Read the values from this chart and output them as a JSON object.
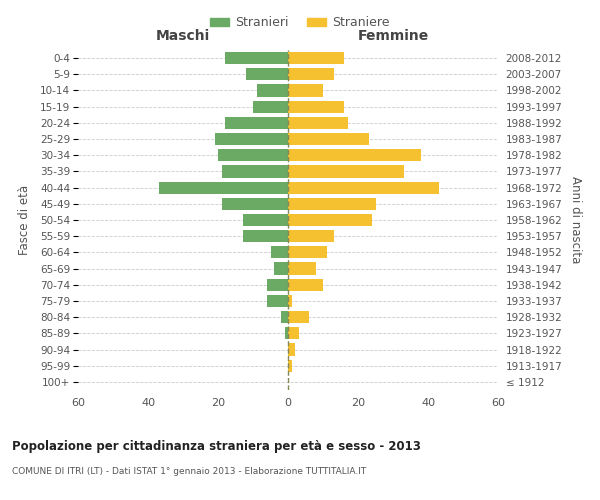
{
  "age_groups": [
    "100+",
    "95-99",
    "90-94",
    "85-89",
    "80-84",
    "75-79",
    "70-74",
    "65-69",
    "60-64",
    "55-59",
    "50-54",
    "45-49",
    "40-44",
    "35-39",
    "30-34",
    "25-29",
    "20-24",
    "15-19",
    "10-14",
    "5-9",
    "0-4"
  ],
  "birth_years": [
    "≤ 1912",
    "1913-1917",
    "1918-1922",
    "1923-1927",
    "1928-1932",
    "1933-1937",
    "1938-1942",
    "1943-1947",
    "1948-1952",
    "1953-1957",
    "1958-1962",
    "1963-1967",
    "1968-1972",
    "1973-1977",
    "1978-1982",
    "1983-1987",
    "1988-1992",
    "1993-1997",
    "1998-2002",
    "2003-2007",
    "2008-2012"
  ],
  "maschi": [
    0,
    0,
    0,
    1,
    2,
    6,
    6,
    4,
    5,
    13,
    13,
    19,
    37,
    19,
    20,
    21,
    18,
    10,
    9,
    12,
    18
  ],
  "femmine": [
    0,
    1,
    2,
    3,
    6,
    1,
    10,
    8,
    11,
    13,
    24,
    25,
    43,
    33,
    38,
    23,
    17,
    16,
    10,
    13,
    16
  ],
  "color_maschi": "#6aaa64",
  "color_femmine": "#f5c131",
  "dashed_line_color": "#888855",
  "background_color": "#ffffff",
  "grid_color": "#cccccc",
  "title": "Popolazione per cittadinanza straniera per età e sesso - 2013",
  "subtitle": "COMUNE DI ITRI (LT) - Dati ISTAT 1° gennaio 2013 - Elaborazione TUTTITALIA.IT",
  "xlabel_left": "Maschi",
  "xlabel_right": "Femmine",
  "ylabel_left": "Fasce di età",
  "ylabel_right": "Anni di nascita",
  "legend_stranieri": "Stranieri",
  "legend_straniere": "Straniere",
  "xlim": 60,
  "bar_height": 0.75
}
